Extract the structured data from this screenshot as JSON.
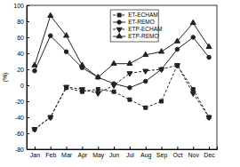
{
  "chart_data": {
    "type": "line",
    "y_label": "(%)",
    "categories": [
      "Jan",
      "Feb",
      "Mar",
      "Apr",
      "May",
      "Jun",
      "Jul",
      "Aug",
      "Sep",
      "Oct",
      "Nov",
      "Dec"
    ],
    "ylim": [
      -80,
      100
    ],
    "yticks": [
      -80,
      -60,
      -40,
      -20,
      0,
      20,
      40,
      60,
      80,
      100
    ],
    "legend": "top",
    "series": [
      {
        "name": "ET-ECHAM",
        "color": "#222222",
        "marker": "square",
        "line_style": "dashed",
        "values": [
          -55,
          -40,
          -3,
          -8,
          -5,
          -8,
          -18,
          -28,
          -20,
          25,
          -5,
          -40
        ]
      },
      {
        "name": "ET-REMO",
        "color": "#222222",
        "marker": "circle",
        "line_style": "solid",
        "values": [
          18,
          62,
          42,
          22,
          10,
          2,
          -3,
          5,
          20,
          45,
          60,
          35
        ]
      },
      {
        "name": "ETP-ECHAM",
        "color": "#222222",
        "marker": "triangle-down",
        "line_style": "dashed",
        "values": [
          -55,
          -40,
          -2,
          -5,
          -10,
          0,
          15,
          18,
          20,
          25,
          -10,
          -40
        ]
      },
      {
        "name": "ETP-REMO",
        "color": "#222222",
        "marker": "triangle",
        "line_style": "solid",
        "values": [
          25,
          87,
          62,
          25,
          10,
          27,
          27,
          38,
          42,
          55,
          78,
          48
        ]
      }
    ]
  }
}
